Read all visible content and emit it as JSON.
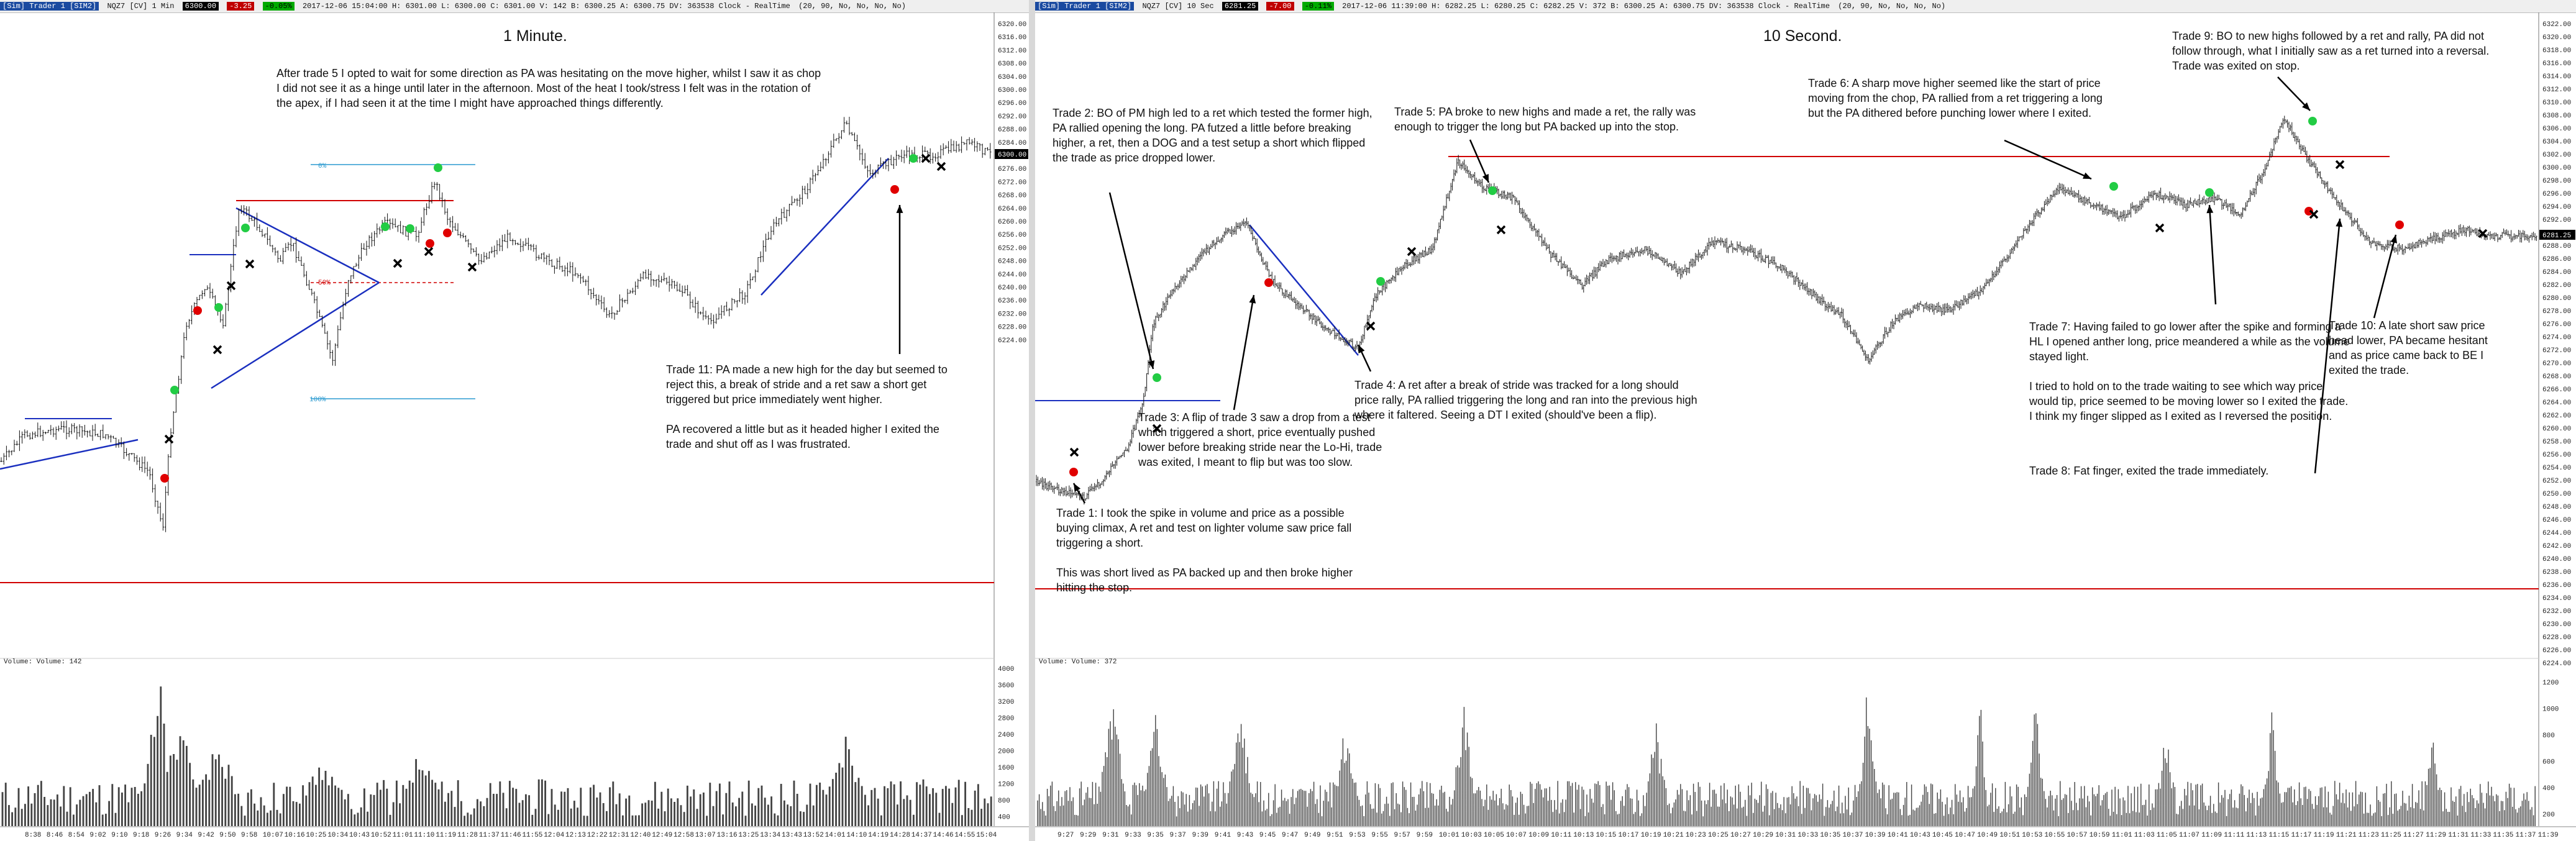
{
  "left": {
    "titlebar": {
      "symbol": "[Sim] Trader 1 [SIM2]",
      "instrument": "NQZ7 [CV] 1 Min",
      "last": "6300.00",
      "chg": "-3.25",
      "pct": "-0.05%",
      "ohlc": "2017-12-06 15:04:00 H: 6301.00 L: 6300.00 C: 6301.00 V: 142 B: 6300.25 A: 6300.75 DV: 363538 Clock - RealTime",
      "study": "(20, 90, No, No, No, No)"
    },
    "chart_title": "1 Minute.",
    "price_labels": [
      "6320.00",
      "6316.00",
      "6312.00",
      "6308.00",
      "6304.00",
      "6300.00",
      "6296.00",
      "6292.00",
      "6288.00",
      "6284.00",
      "6280.00",
      "6276.00",
      "6272.00",
      "6268.00",
      "6264.00",
      "6260.00",
      "6256.00",
      "6252.00",
      "6248.00",
      "6244.00",
      "6240.00",
      "6236.00",
      "6232.00",
      "6228.00",
      "6224.00"
    ],
    "current_price": "6300.00",
    "fib_top": "0%",
    "fib_mid": "50%",
    "fib_bottom": "100%",
    "volume_label": "Volume: Volume: 142",
    "volume_labels": [
      "4000",
      "3600",
      "3200",
      "2800",
      "2400",
      "2000",
      "1600",
      "1200",
      "800",
      "400"
    ],
    "time_labels": [
      "8:38",
      "8:46",
      "8:54",
      "9:02",
      "9:10",
      "9:18",
      "9:26",
      "9:34",
      "9:42",
      "9:50",
      "9:58",
      "10:07",
      "10:16",
      "10:25",
      "10:34",
      "10:43",
      "10:52",
      "11:01",
      "11:10",
      "11:19",
      "11:28",
      "11:37",
      "11:46",
      "11:55",
      "12:04",
      "12:13",
      "12:22",
      "12:31",
      "12:40",
      "12:49",
      "12:58",
      "13:07",
      "13:16",
      "13:25",
      "13:34",
      "13:43",
      "13:52",
      "14:01",
      "14:10",
      "14:19",
      "14:28",
      "14:37",
      "14:46",
      "14:55",
      "15:04"
    ],
    "note_top": "After trade 5 I opted to wait for some direction as PA was hesitating on the move higher, whilst I saw it as chop I did not see it as a hinge until later in the afternoon.  Most of the heat I took/stress I felt was in the rotation of the apex, if I had seen it at the time I might have approached things differently.",
    "note_trade11_a": "Trade 11:  PA made a new high for the day but seemed to reject this, a break of stride and a ret saw a short get triggered but price immediately went higher.",
    "note_trade11_b": "PA recovered a little but as it headed higher I exited the trade and shut off as I was frustrated."
  },
  "right": {
    "titlebar": {
      "symbol": "[Sim] Trader 1 [SIM2]",
      "instrument": "NQZ7 [CV] 10 Sec",
      "last": "6281.25",
      "chg": "-7.00",
      "pct": "-0.11%",
      "ohlc": "2017-12-06 11:39:00 H: 6282.25 L: 6280.25 C: 6282.25 V: 372 B: 6300.25 A: 6300.75 DV: 363538 Clock - RealTime",
      "study": "(20, 90, No, No, No, No)"
    },
    "chart_title": "10 Second.",
    "price_labels": [
      "6322.00",
      "6320.00",
      "6318.00",
      "6316.00",
      "6314.00",
      "6312.00",
      "6310.00",
      "6308.00",
      "6306.00",
      "6304.00",
      "6302.00",
      "6300.00",
      "6298.00",
      "6296.00",
      "6294.00",
      "6292.00",
      "6290.00",
      "6288.00",
      "6286.00",
      "6284.00",
      "6282.00",
      "6280.00",
      "6278.00",
      "6276.00",
      "6274.00",
      "6272.00",
      "6270.00",
      "6268.00",
      "6266.00",
      "6264.00",
      "6262.00",
      "6260.00",
      "6258.00",
      "6256.00",
      "6254.00",
      "6252.00",
      "6250.00",
      "6248.00",
      "6246.00",
      "6244.00",
      "6242.00",
      "6240.00",
      "6238.00",
      "6236.00",
      "6234.00",
      "6232.00",
      "6230.00",
      "6228.00",
      "6226.00",
      "6224.00"
    ],
    "current_price": "6281.25",
    "volume_label": "Volume: Volume: 372",
    "volume_labels": [
      "1200",
      "1000",
      "800",
      "600",
      "400",
      "200"
    ],
    "time_labels": [
      "9:27",
      "9:29",
      "9:31",
      "9:33",
      "9:35",
      "9:37",
      "9:39",
      "9:41",
      "9:43",
      "9:45",
      "9:47",
      "9:49",
      "9:51",
      "9:53",
      "9:55",
      "9:57",
      "9:59",
      "10:01",
      "10:03",
      "10:05",
      "10:07",
      "10:09",
      "10:11",
      "10:13",
      "10:15",
      "10:17",
      "10:19",
      "10:21",
      "10:23",
      "10:25",
      "10:27",
      "10:29",
      "10:31",
      "10:33",
      "10:35",
      "10:37",
      "10:39",
      "10:41",
      "10:43",
      "10:45",
      "10:47",
      "10:49",
      "10:51",
      "10:53",
      "10:55",
      "10:57",
      "10:59",
      "11:01",
      "11:03",
      "11:05",
      "11:07",
      "11:09",
      "11:11",
      "11:13",
      "11:15",
      "11:17",
      "11:19",
      "11:21",
      "11:23",
      "11:25",
      "11:27",
      "11:29",
      "11:31",
      "11:33",
      "11:35",
      "11:37",
      "11:39"
    ],
    "note_trade1_a": "Trade 1:  I took the spike in volume and price as a possible buying climax, A ret and test on lighter volume saw price fall triggering a short.",
    "note_trade1_b": "This was short lived as PA backed up and then broke higher hitting the stop.",
    "note_trade2": "Trade 2:  BO of PM high led to a ret which tested the former high, PA rallied opening  the long.  PA futzed a little before breaking higher, a ret, then a DOG and a test setup a short which flipped the trade as price dropped lower.",
    "note_trade3": "Trade 3:  A flip of trade 3 saw a drop from a test which triggered a short, price eventually pushed lower before breaking stride near the Lo-Hi, trade was exited, I meant to flip but was too slow.",
    "note_trade4": "Trade 4:  A ret after a break of stride was tracked for a long should price rally, PA rallied triggering the long and ran into the previous high where it faltered.  Seeing a DT I exited (should've been a flip).",
    "note_trade5": "Trade 5:  PA broke to new highs and made a ret, the rally was enough to trigger the long but PA backed up into the stop.",
    "note_trade6": "Trade 6:  A sharp move higher seemed like the start of price moving from the chop, PA rallied from a ret triggering a long but the PA dithered before punching lower where I exited.",
    "note_trade7_a": "Trade 7:  Having failed to go lower after the spike and forming a HL I opened anther long, price meandered a while as the volume stayed light.",
    "note_trade7_b": "I tried to hold on to the trade waiting to see which way price would tip, price seemed to be moving lower so I exited the trade.  I think my finger slipped as I exited as I reversed the position.",
    "note_trade8": "Trade 8:  Fat finger, exited the trade immediately.",
    "note_trade9": "Trade 9:  BO to new highs followed by a ret and rally, PA did not follow through, what I initially saw as a ret turned into a reversal.  Trade was exited on stop.",
    "note_trade10": "Trade 10:  A late short saw price head lower, PA became hesitant and as price came back to BE I exited the trade."
  }
}
